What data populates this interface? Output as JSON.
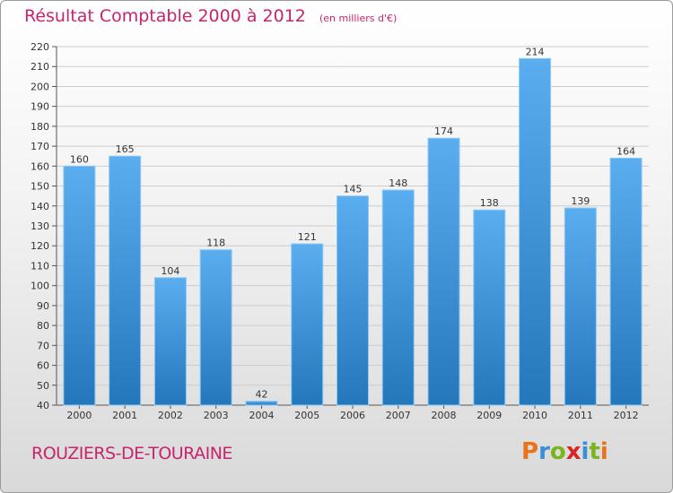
{
  "header": {
    "title": "Résultat Comptable 2000 à 2012",
    "subtitle": "(en milliers d'€)"
  },
  "footer": {
    "commune": "ROUZIERS-DE-TOURAINE",
    "logo_text": "Proxiti",
    "logo_colors": [
      "#e8731a",
      "#3a8fd6",
      "#7ab51d",
      "#d6262a",
      "#3a8fd6",
      "#7ab51d",
      "#e8731a"
    ]
  },
  "colors": {
    "bar_light": "#5aaef0",
    "bar_dark": "#2577bb",
    "grid": "#cccccc",
    "title": "#c8246e"
  },
  "chart_data": {
    "type": "bar",
    "title": "Résultat Comptable 2000 à 2012",
    "xlabel": "",
    "ylabel": "",
    "categories": [
      "2000",
      "2001",
      "2002",
      "2003",
      "2004",
      "2005",
      "2006",
      "2007",
      "2008",
      "2009",
      "2010",
      "2011",
      "2012"
    ],
    "values": [
      160,
      165,
      104,
      118,
      42,
      121,
      145,
      148,
      174,
      138,
      214,
      139,
      164
    ],
    "ylim": [
      40,
      220
    ],
    "ytick_step": 10,
    "grid": true
  }
}
